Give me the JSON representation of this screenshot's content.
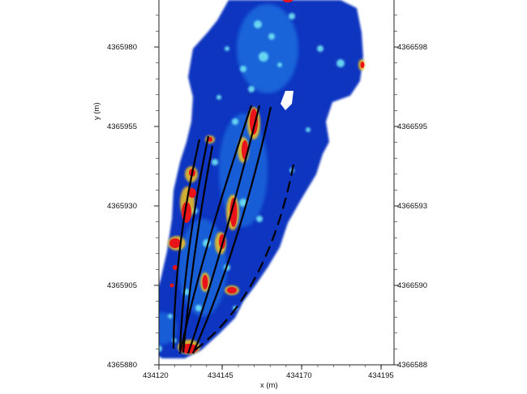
{
  "map": {
    "x_axis": {
      "title": "x (m)",
      "ticks": [
        "434120",
        "434145",
        "434170",
        "434195"
      ]
    },
    "y_axis_left": {
      "title": "y (m)",
      "ticks": [
        "4365880",
        "4365905",
        "4365930",
        "4365955",
        "4365980"
      ]
    },
    "y_axis_right": {
      "ticks": [
        "4366588",
        "4366590",
        "4366593",
        "4366595",
        "4366598"
      ]
    },
    "colors": {
      "background_field": "#0a2fb8",
      "mid_field": "#1e6fe0",
      "light_field": "#5fd8f0",
      "hot": "#e8141a",
      "warm": "#f5c21a",
      "lines": "#000000"
    }
  }
}
